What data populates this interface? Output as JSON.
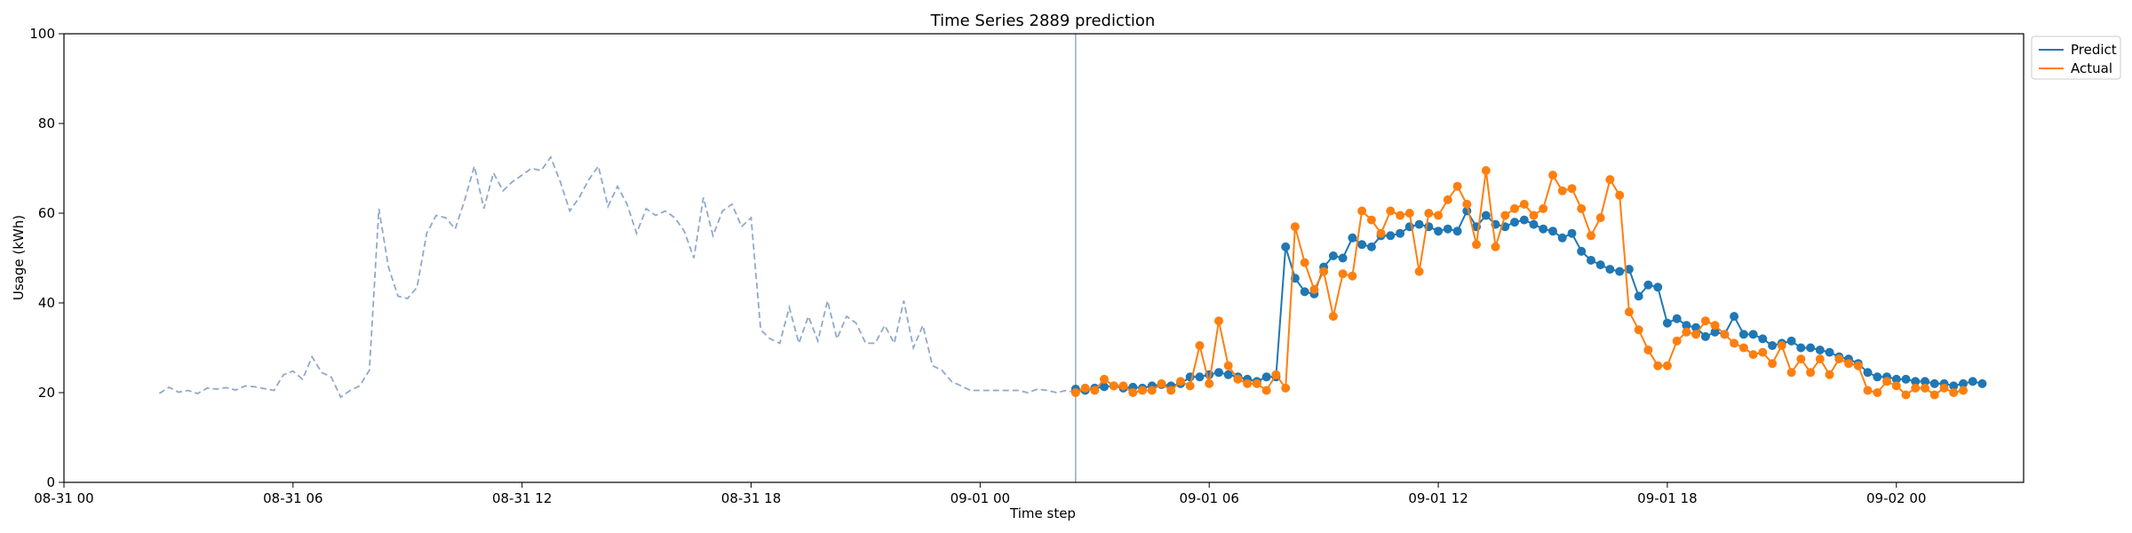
{
  "chart_data": {
    "type": "line",
    "title": "Time Series 2889 prediction",
    "xlabel": "Time step",
    "ylabel": "Usage (kWh)",
    "ylim": [
      0,
      100
    ],
    "yticks": [
      0,
      20,
      40,
      60,
      80,
      100
    ],
    "xlim": [
      "2024-08-31 00:00",
      "2024-09-02 03:20"
    ],
    "xtick_labels": [
      "08-31 00",
      "08-31 06",
      "08-31 12",
      "08-31 18",
      "09-01 00",
      "09-01 06",
      "09-01 12",
      "09-01 18",
      "09-02 00"
    ],
    "xtick_values": [
      "2024-08-31 00:00",
      "2024-08-31 06:00",
      "2024-08-31 12:00",
      "2024-08-31 18:00",
      "2024-09-01 00:00",
      "2024-09-01 06:00",
      "2024-09-01 12:00",
      "2024-09-01 18:00",
      "2024-09-02 00:00"
    ],
    "grid": false,
    "legend": {
      "placement": "outside-top-right",
      "entries": [
        "Predict",
        "Actual"
      ]
    },
    "forecast_start": "2024-09-01 02:30",
    "history": {
      "start": "2024-08-31 02:30",
      "interval_minutes": 15,
      "values": [
        19.8,
        21.2,
        20.1,
        20.5,
        19.8,
        21.0,
        20.8,
        21.1,
        20.6,
        21.5,
        21.3,
        20.9,
        20.5,
        24.0,
        24.8,
        23.0,
        28.0,
        24.5,
        23.5,
        19.0,
        20.5,
        21.5,
        25.0,
        61.0,
        48.0,
        41.5,
        41.0,
        43.5,
        55.5,
        59.5,
        59.0,
        56.5,
        63.0,
        70.5,
        61.0,
        69.0,
        65.0,
        67.0,
        68.5,
        70.0,
        69.5,
        72.5,
        67.0,
        60.5,
        63.5,
        67.5,
        70.5,
        61.5,
        66.0,
        62.0,
        55.5,
        61.0,
        59.5,
        60.5,
        59.0,
        56.0,
        50.0,
        63.5,
        55.0,
        60.5,
        62.0,
        57.0,
        59.0,
        34.0,
        32.0,
        31.0,
        39.0,
        31.0,
        37.0,
        31.5,
        40.5,
        32.0,
        37.0,
        35.5,
        31.0,
        31.0,
        35.0,
        31.0,
        40.5,
        30.0,
        35.0,
        26.0,
        25.0,
        22.5,
        21.5,
        20.5,
        20.5,
        20.5,
        20.5,
        20.5,
        20.5,
        20.0,
        20.8,
        20.5,
        20.0,
        20.5,
        20.0,
        20.5
      ]
    },
    "series": [
      {
        "name": "Predict",
        "color": "#1f77b4",
        "start": "2024-09-01 02:30",
        "interval_minutes": 15,
        "values": [
          20.8,
          20.5,
          21.0,
          21.3,
          21.5,
          21.0,
          21.2,
          21.0,
          21.5,
          21.8,
          21.5,
          22.0,
          23.5,
          23.5,
          24.0,
          24.5,
          24.0,
          23.5,
          23.0,
          22.5,
          23.5,
          23.5,
          52.5,
          45.5,
          42.5,
          42.0,
          48.0,
          50.5,
          50.0,
          54.5,
          53.0,
          52.5,
          55.0,
          55.0,
          55.5,
          57.0,
          57.5,
          57.0,
          56.0,
          56.5,
          56.0,
          60.5,
          57.0,
          59.5,
          57.5,
          57.0,
          58.0,
          58.5,
          57.5,
          56.5,
          56.0,
          54.5,
          55.5,
          51.5,
          49.5,
          48.5,
          47.5,
          47.0,
          47.5,
          41.5,
          44.0,
          43.5,
          35.5,
          36.5,
          35.0,
          34.5,
          32.5,
          33.5,
          33.0,
          37.0,
          33.0,
          33.0,
          32.0,
          30.5,
          31.0,
          31.5,
          30.0,
          30.0,
          29.5,
          29.0,
          28.0,
          27.5,
          26.5,
          24.5,
          23.5,
          23.5,
          23.0,
          23.0,
          22.5,
          22.5,
          22.0,
          22.0,
          21.5,
          22.0,
          22.5,
          22.0
        ]
      },
      {
        "name": "Actual",
        "color": "#ff7f0e",
        "start": "2024-09-01 02:30",
        "interval_minutes": 15,
        "values": [
          20.0,
          21.0,
          20.5,
          23.0,
          21.5,
          21.5,
          20.0,
          20.5,
          20.5,
          22.0,
          20.5,
          22.5,
          21.5,
          30.5,
          22.0,
          36.0,
          26.0,
          23.0,
          22.0,
          22.0,
          20.5,
          24.0,
          21.0,
          57.0,
          49.0,
          43.0,
          47.0,
          37.0,
          46.5,
          46.0,
          60.5,
          58.5,
          55.5,
          60.5,
          59.5,
          60.0,
          47.0,
          60.0,
          59.5,
          63.0,
          66.0,
          62.0,
          53.0,
          69.5,
          52.5,
          59.5,
          61.0,
          62.0,
          59.5,
          61.0,
          68.5,
          65.0,
          65.5,
          61.0,
          55.0,
          59.0,
          67.5,
          64.0,
          38.0,
          34.0,
          29.5,
          26.0,
          26.0,
          31.5,
          33.5,
          33.0,
          36.0,
          35.0,
          33.0,
          31.0,
          30.0,
          28.5,
          29.0,
          26.5,
          30.5,
          24.5,
          27.5,
          24.5,
          27.5,
          24.0,
          27.5,
          26.5,
          26.0,
          20.5,
          20.0,
          22.5,
          21.5,
          19.5,
          21.0,
          21.0,
          19.5,
          21.0,
          20.0,
          20.5
        ]
      }
    ]
  }
}
